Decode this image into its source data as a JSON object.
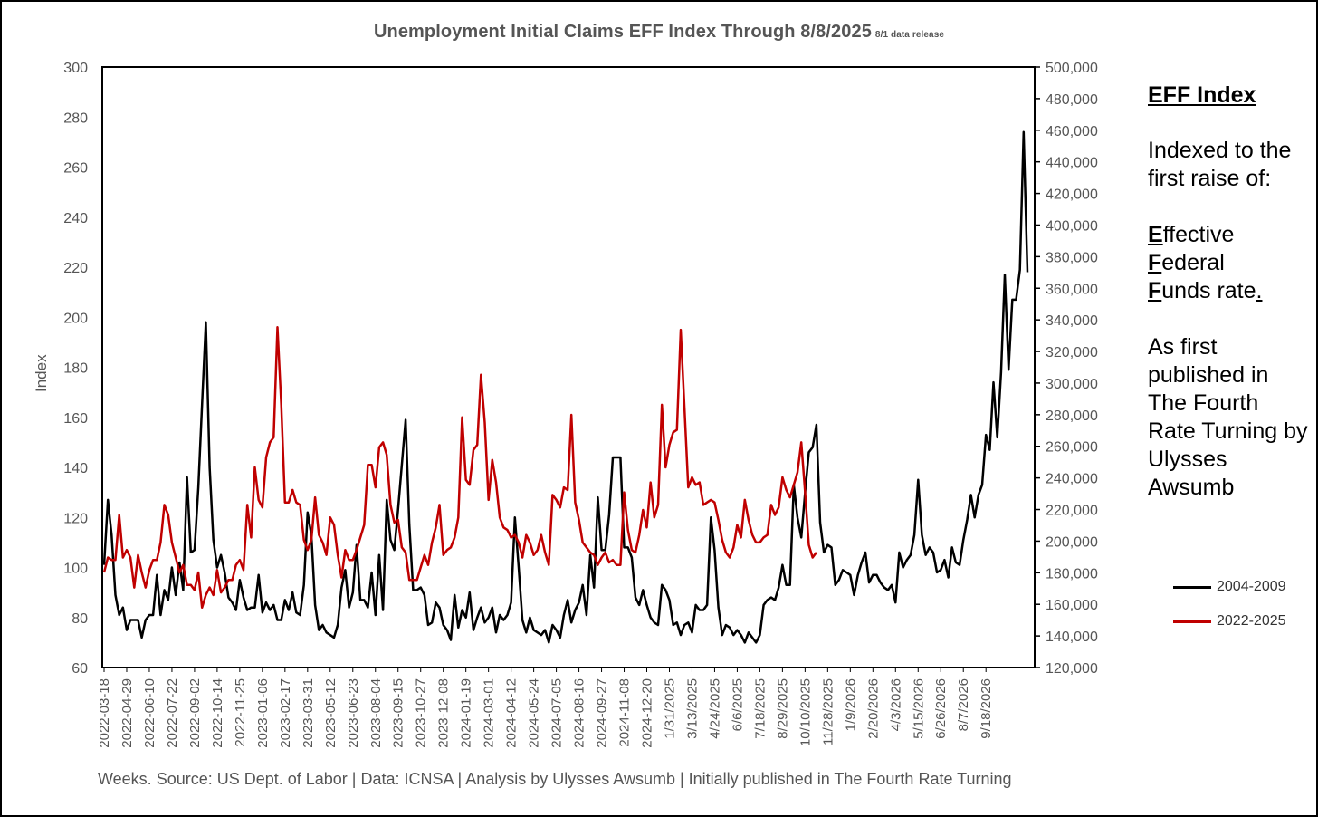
{
  "title": {
    "main": "Unemployment Initial Claims EFF Index Through 8/8/2025",
    "sub": "8/1 data release"
  },
  "footer": "Weeks. Source: US Dept. of Labor | Data: ICNSA | Analysis by Ulysses Awsumb | Initially published in The Fourth Rate Turning",
  "side_text": {
    "heading": "EFF Index",
    "para1": "Indexed to the first raise of:",
    "e_letter": "E",
    "e_rest": "ffective",
    "f_letter": "F",
    "f_rest": "ederal",
    "f2_letter": "F",
    "f2_rest": "unds rate",
    "period": ".",
    "para3": "As first published in The Fourth Rate Turning by Ulysses Awsumb"
  },
  "colors": {
    "series_2004": "#000000",
    "series_2022": "#c00000",
    "axis_text": "#555555"
  },
  "chart_data": {
    "type": "line",
    "title": "Unemployment Initial Claims EFF Index Through 8/8/2025",
    "ylabel": "Index",
    "xlabel": "Weeks",
    "ylim": [
      60,
      300
    ],
    "y_ticks": [
      "60",
      "80",
      "100",
      "120",
      "140",
      "160",
      "180",
      "200",
      "220",
      "240",
      "260",
      "280",
      "300"
    ],
    "y2lim": [
      120000,
      500000
    ],
    "y2_ticks": [
      "120,000",
      "140,000",
      "160,000",
      "180,000",
      "200,000",
      "220,000",
      "240,000",
      "260,000",
      "280,000",
      "300,000",
      "320,000",
      "340,000",
      "360,000",
      "380,000",
      "400,000",
      "420,000",
      "440,000",
      "460,000",
      "480,000",
      "500,000"
    ],
    "x_tick_labels": [
      "2022-03-18",
      "2022-04-29",
      "2022-06-10",
      "2022-07-22",
      "2022-09-02",
      "2022-10-14",
      "2022-11-25",
      "2023-01-06",
      "2023-02-17",
      "2023-03-31",
      "2023-05-12",
      "2023-06-23",
      "2023-08-04",
      "2023-09-15",
      "2023-10-27",
      "2023-12-08",
      "2024-01-19",
      "2024-03-01",
      "2024-04-12",
      "2024-05-24",
      "2024-07-05",
      "2024-08-16",
      "2024-09-27",
      "2024-11-08",
      "2024-12-20",
      "1/31/2025",
      "3/13/2025",
      "4/24/2025",
      "6/6/2025",
      "7/18/2025",
      "8/29/2025",
      "10/10/2025",
      "11/28/2025",
      "1/9/2026",
      "2/20/2026",
      "4/3/2026",
      "5/15/2026",
      "6/26/2026",
      "8/7/2026",
      "9/18/2026"
    ],
    "weeks_per_tick": 6,
    "series": [
      {
        "name": "2004-2009",
        "values": [
          101,
          127,
          113,
          89,
          81,
          84,
          75,
          79,
          79,
          79,
          72,
          79,
          81,
          81,
          97,
          81,
          91,
          87,
          100,
          89,
          102,
          91,
          136,
          106,
          107,
          132,
          165,
          198,
          140,
          111,
          100,
          105,
          98,
          88,
          86,
          83,
          95,
          88,
          83,
          84,
          84,
          97,
          82,
          86,
          83,
          85,
          79,
          79,
          87,
          83,
          90,
          82,
          81,
          93,
          122,
          113,
          85,
          75,
          77,
          74,
          73,
          72,
          77,
          92,
          99,
          84,
          90,
          109,
          87,
          87,
          84,
          98,
          81,
          105,
          83,
          127,
          111,
          107,
          123,
          141,
          159,
          117,
          91,
          91,
          92,
          89,
          77,
          78,
          86,
          84,
          77,
          75,
          71,
          89,
          76,
          83,
          80,
          90,
          75,
          80,
          84,
          78,
          80,
          84,
          74,
          81,
          79,
          81,
          86,
          120,
          100,
          79,
          74,
          80,
          75,
          74,
          73,
          75,
          70,
          77,
          75,
          72,
          81,
          87,
          78,
          83,
          86,
          93,
          81,
          105,
          92,
          128,
          107,
          107,
          121,
          144,
          144,
          144,
          108,
          108,
          104,
          88,
          85,
          91,
          85,
          80,
          78,
          77,
          93,
          91,
          87,
          77,
          78,
          73,
          77,
          78,
          74,
          85,
          83,
          83,
          85,
          120,
          107,
          84,
          73,
          77,
          76,
          73,
          75,
          73,
          70,
          74,
          72,
          70,
          73,
          85,
          87,
          88,
          87,
          92,
          101,
          93,
          93,
          133,
          120,
          112,
          130,
          146,
          148,
          157,
          118,
          106,
          109,
          108,
          93,
          95,
          99,
          98,
          97,
          89,
          97,
          102,
          106,
          94,
          97,
          97,
          94,
          92,
          91,
          93,
          86,
          106,
          100,
          103,
          105,
          113,
          135,
          113,
          105,
          108,
          106,
          98,
          99,
          103,
          96,
          108,
          102,
          101,
          111,
          119,
          129,
          120,
          129,
          133,
          153,
          147,
          174,
          152,
          178,
          217,
          179,
          207,
          207,
          219,
          274,
          218
        ]
      },
      {
        "name": "2022-2025",
        "values": [
          98,
          104,
          103,
          103,
          121,
          104,
          107,
          104,
          92,
          105,
          98,
          92,
          99,
          103,
          103,
          110,
          125,
          121,
          110,
          104,
          98,
          101,
          93,
          93,
          91,
          98,
          84,
          89,
          92,
          89,
          99,
          90,
          92,
          95,
          95,
          101,
          103,
          99,
          125,
          112,
          140,
          127,
          124,
          144,
          150,
          152,
          196,
          165,
          126,
          126,
          131,
          126,
          125,
          111,
          107,
          111,
          128,
          113,
          110,
          105,
          120,
          117,
          105,
          96,
          107,
          103,
          103,
          107,
          112,
          117,
          141,
          141,
          132,
          148,
          150,
          145,
          125,
          118,
          119,
          108,
          106,
          95,
          95,
          95,
          100,
          105,
          101,
          110,
          116,
          125,
          105,
          107,
          108,
          112,
          120,
          160,
          135,
          133,
          147,
          149,
          177,
          158,
          127,
          143,
          134,
          120,
          116,
          115,
          112,
          113,
          110,
          104,
          113,
          110,
          105,
          107,
          113,
          106,
          101,
          129,
          127,
          124,
          132,
          131,
          161,
          126,
          119,
          110,
          108,
          106,
          105,
          101,
          104,
          106,
          102,
          103,
          101,
          101,
          130,
          115,
          107,
          106,
          113,
          123,
          116,
          134,
          120,
          125,
          165,
          140,
          149,
          154,
          155,
          195,
          164,
          132,
          136,
          133,
          134,
          125,
          126,
          127,
          126,
          119,
          111,
          106,
          104,
          108,
          117,
          112,
          127,
          119,
          113,
          110,
          110,
          112,
          113,
          125,
          121,
          124,
          136,
          131,
          128,
          133,
          138,
          150,
          130,
          109,
          104,
          106
        ],
        "start_offset": 0
      }
    ],
    "legend": [
      "2004-2009",
      "2022-2025"
    ],
    "legend_position": "right"
  }
}
